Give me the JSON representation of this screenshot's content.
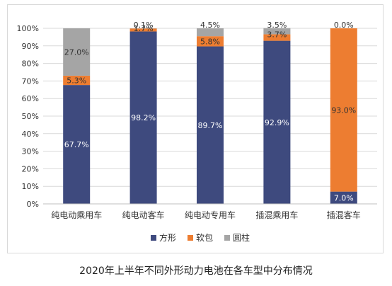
{
  "chart_data": {
    "type": "bar",
    "stacked": true,
    "categories": [
      "纯电动乘用车",
      "纯电动客车",
      "纯电动专用车",
      "插混乘用车",
      "插混客车"
    ],
    "series": [
      {
        "name": "方形",
        "color": "#3e4a7e",
        "values": [
          67.7,
          98.2,
          89.7,
          92.9,
          7.0
        ],
        "labels": [
          "67.7%",
          "98.2%",
          "89.7%",
          "92.9%",
          "7.0%"
        ]
      },
      {
        "name": "软包",
        "color": "#ed7d31",
        "values": [
          5.3,
          1.7,
          5.8,
          3.7,
          93.0
        ],
        "labels": [
          "5.3%",
          "1.7%",
          "5.8%",
          "3.7%",
          "93.0%"
        ]
      },
      {
        "name": "圆柱",
        "color": "#a5a5a5",
        "values": [
          27.0,
          0.1,
          4.5,
          3.5,
          0.0
        ],
        "labels": [
          "27.0%",
          "0.1%",
          "4.5%",
          "3.5%",
          "0.0%"
        ]
      }
    ],
    "yticks": [
      "0%",
      "10%",
      "20%",
      "30%",
      "40%",
      "50%",
      "60%",
      "70%",
      "80%",
      "90%",
      "100%"
    ],
    "ylim": [
      0,
      100
    ],
    "grid": true,
    "legend": "bottom",
    "title": "2020年上半年不同外形动力电池在各车型中分布情况"
  }
}
